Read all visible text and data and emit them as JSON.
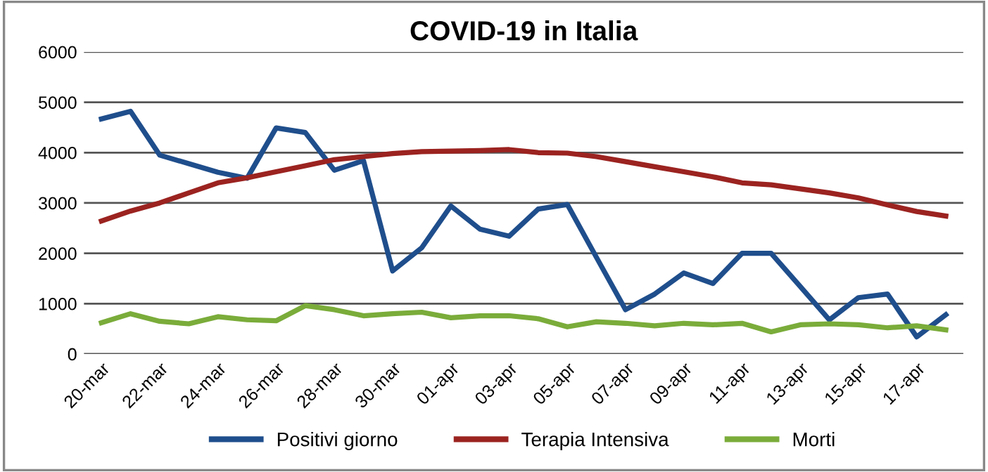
{
  "chart_data": {
    "type": "line",
    "title": "COVID-19 in Italia",
    "categories": [
      "20-mar",
      null,
      "22-mar",
      null,
      "24-mar",
      null,
      "26-mar",
      null,
      "28-mar",
      null,
      "30-mar",
      null,
      "01-apr",
      null,
      "03-apr",
      null,
      "05-apr",
      null,
      "07-apr",
      null,
      "09-apr",
      null,
      "11-apr",
      null,
      "13-apr",
      null,
      "15-apr",
      null,
      "17-apr",
      null
    ],
    "series": [
      {
        "name": "Positivi giorno",
        "color": "#1f4e8c",
        "values": [
          4670,
          4820,
          3950,
          3780,
          3610,
          3490,
          4490,
          4400,
          3650,
          3840,
          1650,
          2110,
          2940,
          2480,
          2340,
          2880,
          2970,
          1920,
          880,
          1190,
          1610,
          1400,
          2000,
          2000,
          1340,
          680,
          1120,
          1190,
          340,
          780
        ]
      },
      {
        "name": "Terapia Intensiva",
        "color": "#9b2320",
        "values": [
          2640,
          2840,
          3000,
          3200,
          3400,
          3500,
          3620,
          3740,
          3860,
          3920,
          3980,
          4020,
          4030,
          4040,
          4060,
          4000,
          3990,
          3920,
          3820,
          3720,
          3620,
          3520,
          3400,
          3360,
          3280,
          3200,
          3100,
          2960,
          2830,
          2740
        ]
      },
      {
        "name": "Morti",
        "color": "#7aac3a",
        "values": [
          620,
          800,
          650,
          600,
          740,
          680,
          660,
          960,
          880,
          760,
          800,
          830,
          720,
          760,
          760,
          700,
          540,
          640,
          610,
          560,
          610,
          580,
          610,
          440,
          580,
          600,
          580,
          520,
          560,
          480
        ]
      }
    ],
    "ylim": [
      0,
      6000
    ],
    "yticks": [
      0,
      1000,
      2000,
      3000,
      4000,
      5000,
      6000
    ],
    "grid": "y",
    "legend": "bottom",
    "marker": "none",
    "line_style": "solid"
  }
}
